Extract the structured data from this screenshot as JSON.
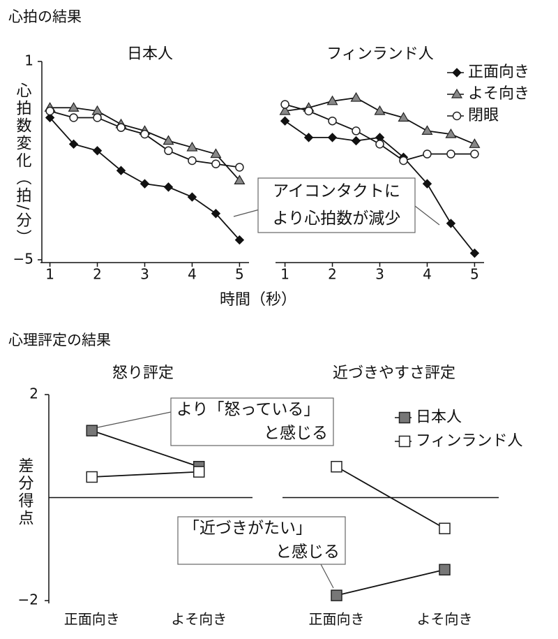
{
  "sections": [
    "心拍の結果",
    "心理評定の結果"
  ],
  "chart_data": [
    {
      "type": "line",
      "title": "日本人",
      "ylabel": "心拍数変化（拍/分）",
      "xlabel": "時間（秒）",
      "x": [
        1,
        1.5,
        2,
        2.5,
        3,
        3.5,
        4,
        4.5,
        5
      ],
      "xlim": [
        0.8,
        5.2
      ],
      "xticks": [
        1,
        2,
        3,
        4,
        5
      ],
      "ylim": [
        -5,
        1
      ],
      "yticks": [
        1,
        {
          "value": -5,
          "label": "−5"
        }
      ],
      "annotation": [
        "アイコンタクトに",
        "より心拍数が減少"
      ],
      "series": [
        {
          "name": "正面向き",
          "color": "#111111",
          "marker": "diamond",
          "values": [
            -0.7,
            -1.5,
            -1.7,
            -2.3,
            -2.7,
            -2.8,
            -3.1,
            -3.6,
            -4.4
          ]
        },
        {
          "name": "よそ向き",
          "color": "#888888",
          "marker": "triangle",
          "values": [
            -0.4,
            -0.4,
            -0.5,
            -0.9,
            -1.1,
            -1.4,
            -1.6,
            -1.8,
            -2.6
          ]
        },
        {
          "name": "閉眼",
          "color": "#ffffff",
          "marker": "circle",
          "values": [
            -0.5,
            -0.7,
            -0.7,
            -1.0,
            -1.2,
            -1.7,
            -2.0,
            -2.1,
            -2.2
          ]
        }
      ]
    },
    {
      "type": "line",
      "title": "フィンランド人",
      "legend": "right",
      "x": [
        1,
        1.5,
        2,
        2.5,
        3,
        3.5,
        4,
        4.5,
        5
      ],
      "xlim": [
        0.8,
        5.2
      ],
      "xticks": [
        1,
        2,
        3,
        4,
        5
      ],
      "ylim": [
        -5,
        1
      ],
      "series": [
        {
          "name": "正面向き",
          "color": "#111111",
          "marker": "diamond",
          "values": [
            -0.8,
            -1.3,
            -1.3,
            -1.4,
            -1.3,
            -1.9,
            -2.7,
            -3.9,
            -4.8
          ]
        },
        {
          "name": "よそ向き",
          "color": "#888888",
          "marker": "triangle",
          "values": [
            -0.5,
            -0.4,
            -0.2,
            -0.1,
            -0.5,
            -0.7,
            -1.1,
            -1.2,
            -1.5
          ]
        },
        {
          "name": "閉眼",
          "color": "#ffffff",
          "marker": "circle",
          "values": [
            -0.3,
            -0.5,
            -0.8,
            -1.1,
            -1.5,
            -2.0,
            -1.8,
            -1.8,
            -1.8
          ]
        }
      ]
    },
    {
      "type": "dot",
      "title": "怒り評定",
      "ylabel": "差分得点",
      "categories": [
        "正面向き",
        "よそ向き"
      ],
      "ylim": [
        -2,
        2
      ],
      "yticks": [
        2,
        {
          "value": -2,
          "label": "−2"
        }
      ],
      "annotation": [
        "より「怒っている」",
        "と感じる"
      ],
      "series": [
        {
          "name": "日本人",
          "color": "#777777",
          "marker": "square",
          "values": [
            1.3,
            0.6
          ]
        },
        {
          "name": "フィンランド人",
          "color": "#ffffff",
          "marker": "square",
          "values": [
            0.4,
            0.5
          ]
        }
      ]
    },
    {
      "type": "dot",
      "title": "近づきやすさ評定",
      "legend": "right",
      "categories": [
        "正面向き",
        "よそ向き"
      ],
      "ylim": [
        -2,
        2
      ],
      "annotation": [
        "「近づきがたい」",
        "と感じる"
      ],
      "series": [
        {
          "name": "日本人",
          "color": "#777777",
          "marker": "square",
          "values": [
            -1.9,
            -1.4
          ]
        },
        {
          "name": "フィンランド人",
          "color": "#ffffff",
          "marker": "square",
          "values": [
            0.6,
            -0.6
          ]
        }
      ]
    }
  ]
}
